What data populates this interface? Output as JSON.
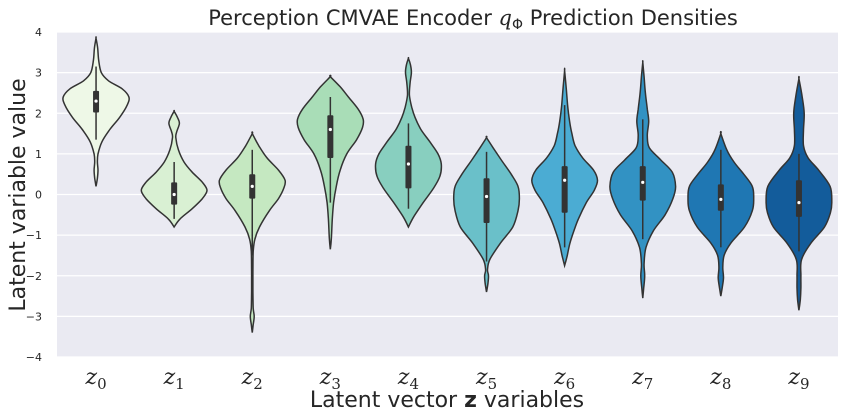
{
  "chart_data": {
    "type": "violin",
    "title_text": "Perception CMVAE Encoder ",
    "title_math": "q",
    "title_sub": "Φ",
    "title_tail": " Prediction Densities",
    "ylabel": "Latent variable value",
    "xlabel_pre": "Latent vector ",
    "xlabel_bold": "z",
    "xlabel_post": " variables",
    "ylim": [
      -4,
      4
    ],
    "yticks": [
      "−4",
      "−3",
      "−2",
      "−1",
      "0",
      "1",
      "2",
      "3",
      "4"
    ],
    "ytick_values": [
      -4,
      -3,
      -2,
      -1,
      0,
      1,
      2,
      3,
      4
    ],
    "grid": true,
    "background": "#eaeaf2",
    "categories": [
      {
        "base": "z",
        "sub": "0"
      },
      {
        "base": "z",
        "sub": "1"
      },
      {
        "base": "z",
        "sub": "2"
      },
      {
        "base": "z",
        "sub": "3"
      },
      {
        "base": "z",
        "sub": "4"
      },
      {
        "base": "z",
        "sub": "5"
      },
      {
        "base": "z",
        "sub": "6"
      },
      {
        "base": "z",
        "sub": "7"
      },
      {
        "base": "z",
        "sub": "8"
      },
      {
        "base": "z",
        "sub": "9"
      }
    ],
    "colors": [
      "#eef8e7",
      "#d9f0d3",
      "#c5e8c1",
      "#a9ddb7",
      "#88cfbf",
      "#6ac0c9",
      "#4bacd3",
      "#3292c3",
      "#1f77b3",
      "#135c9b"
    ],
    "violins": [
      {
        "q1": 2.02,
        "median": 2.3,
        "q3": 2.55,
        "wlo": 1.35,
        "whi": 3.15,
        "profile": [
          [
            0.2,
            0
          ],
          [
            0.4,
            0.04
          ],
          [
            0.6,
            0.06
          ],
          [
            0.8,
            0.04
          ],
          [
            1.0,
            0.06
          ],
          [
            1.3,
            0.18
          ],
          [
            1.6,
            0.42
          ],
          [
            1.9,
            0.72
          ],
          [
            2.2,
            0.95
          ],
          [
            2.4,
            1.0
          ],
          [
            2.6,
            0.8
          ],
          [
            2.8,
            0.38
          ],
          [
            3.0,
            0.16
          ],
          [
            3.3,
            0.08
          ],
          [
            3.6,
            0.05
          ],
          [
            3.85,
            0
          ]
        ]
      },
      {
        "q1": -0.25,
        "median": 0.0,
        "q3": 0.3,
        "wlo": -0.6,
        "whi": 0.8,
        "profile": [
          [
            -0.8,
            0
          ],
          [
            -0.6,
            0.18
          ],
          [
            -0.35,
            0.55
          ],
          [
            -0.1,
            0.86
          ],
          [
            0.1,
            1.0
          ],
          [
            0.3,
            0.86
          ],
          [
            0.55,
            0.55
          ],
          [
            0.8,
            0.3
          ],
          [
            1.1,
            0.13
          ],
          [
            1.4,
            0.05
          ],
          [
            1.55,
            0.08
          ],
          [
            1.75,
            0.16
          ],
          [
            1.9,
            0.1
          ],
          [
            2.05,
            0
          ]
        ]
      },
      {
        "q1": -0.1,
        "median": 0.2,
        "q3": 0.5,
        "wlo": -1.5,
        "whi": 1.1,
        "profile": [
          [
            -3.4,
            0
          ],
          [
            -3.2,
            0.03
          ],
          [
            -3.0,
            0.06
          ],
          [
            -2.8,
            0.03
          ],
          [
            -2.4,
            0.02
          ],
          [
            -1.9,
            0.02
          ],
          [
            -1.4,
            0.03
          ],
          [
            -1.1,
            0.08
          ],
          [
            -0.8,
            0.22
          ],
          [
            -0.4,
            0.52
          ],
          [
            -0.1,
            0.8
          ],
          [
            0.15,
            0.96
          ],
          [
            0.35,
            1.0
          ],
          [
            0.6,
            0.8
          ],
          [
            0.9,
            0.45
          ],
          [
            1.2,
            0.2
          ],
          [
            1.5,
            0
          ]
        ]
      },
      {
        "q1": 0.9,
        "median": 1.6,
        "q3": 1.95,
        "wlo": -0.2,
        "whi": 2.4,
        "profile": [
          [
            -1.35,
            0
          ],
          [
            -1.1,
            0.03
          ],
          [
            -0.6,
            0.06
          ],
          [
            -0.2,
            0.1
          ],
          [
            0.2,
            0.18
          ],
          [
            0.6,
            0.3
          ],
          [
            1.0,
            0.5
          ],
          [
            1.35,
            0.8
          ],
          [
            1.65,
            0.98
          ],
          [
            1.85,
            1.0
          ],
          [
            2.1,
            0.85
          ],
          [
            2.4,
            0.55
          ],
          [
            2.65,
            0.3
          ],
          [
            2.9,
            0
          ]
        ]
      },
      {
        "q1": 0.15,
        "median": 0.75,
        "q3": 1.2,
        "wlo": -0.35,
        "whi": 1.75,
        "profile": [
          [
            -0.8,
            0
          ],
          [
            -0.55,
            0.16
          ],
          [
            -0.2,
            0.45
          ],
          [
            0.15,
            0.76
          ],
          [
            0.45,
            0.96
          ],
          [
            0.75,
            1.0
          ],
          [
            1.0,
            0.9
          ],
          [
            1.3,
            0.65
          ],
          [
            1.6,
            0.38
          ],
          [
            1.9,
            0.2
          ],
          [
            2.15,
            0.1
          ],
          [
            2.45,
            0.03
          ],
          [
            2.75,
            0.05
          ],
          [
            3.0,
            0.09
          ],
          [
            3.2,
            0.06
          ],
          [
            3.35,
            0
          ]
        ]
      },
      {
        "q1": -0.7,
        "median": -0.05,
        "q3": 0.4,
        "wlo": -1.65,
        "whi": 1.05,
        "profile": [
          [
            -2.4,
            0
          ],
          [
            -2.2,
            0.04
          ],
          [
            -2.0,
            0.06
          ],
          [
            -1.85,
            0.03
          ],
          [
            -1.6,
            0.1
          ],
          [
            -1.2,
            0.42
          ],
          [
            -0.8,
            0.8
          ],
          [
            -0.4,
            0.96
          ],
          [
            -0.1,
            1.0
          ],
          [
            0.2,
            0.96
          ],
          [
            0.5,
            0.75
          ],
          [
            0.85,
            0.45
          ],
          [
            1.15,
            0.2
          ],
          [
            1.4,
            0
          ]
        ]
      },
      {
        "q1": -0.45,
        "median": 0.35,
        "q3": 0.7,
        "wlo": -1.3,
        "whi": 2.2,
        "profile": [
          [
            -1.75,
            0
          ],
          [
            -1.5,
            0.08
          ],
          [
            -1.2,
            0.16
          ],
          [
            -0.9,
            0.28
          ],
          [
            -0.6,
            0.42
          ],
          [
            -0.2,
            0.66
          ],
          [
            0.1,
            0.9
          ],
          [
            0.35,
            1.0
          ],
          [
            0.6,
            0.88
          ],
          [
            0.9,
            0.55
          ],
          [
            1.2,
            0.32
          ],
          [
            1.5,
            0.22
          ],
          [
            1.8,
            0.15
          ],
          [
            2.2,
            0.09
          ],
          [
            2.6,
            0.05
          ],
          [
            3.05,
            0
          ]
        ]
      },
      {
        "q1": -0.15,
        "median": 0.3,
        "q3": 0.7,
        "wlo": -1.1,
        "whi": 1.85,
        "profile": [
          [
            -2.55,
            0
          ],
          [
            -2.3,
            0.03
          ],
          [
            -2.0,
            0.06
          ],
          [
            -1.7,
            0.04
          ],
          [
            -1.3,
            0.1
          ],
          [
            -0.9,
            0.32
          ],
          [
            -0.5,
            0.68
          ],
          [
            -0.1,
            0.92
          ],
          [
            0.2,
            1.0
          ],
          [
            0.55,
            0.9
          ],
          [
            0.85,
            0.55
          ],
          [
            1.15,
            0.2
          ],
          [
            1.45,
            0.14
          ],
          [
            1.8,
            0.18
          ],
          [
            2.1,
            0.14
          ],
          [
            2.5,
            0.08
          ],
          [
            2.9,
            0.04
          ],
          [
            3.25,
            0
          ]
        ]
      },
      {
        "q1": -0.4,
        "median": -0.12,
        "q3": 0.25,
        "wlo": -1.3,
        "whi": 1.1,
        "profile": [
          [
            -2.5,
            0
          ],
          [
            -2.3,
            0.04
          ],
          [
            -2.05,
            0.08
          ],
          [
            -1.8,
            0.06
          ],
          [
            -1.5,
            0.1
          ],
          [
            -1.2,
            0.3
          ],
          [
            -0.8,
            0.72
          ],
          [
            -0.4,
            0.96
          ],
          [
            -0.1,
            1.0
          ],
          [
            0.2,
            0.96
          ],
          [
            0.5,
            0.7
          ],
          [
            0.8,
            0.4
          ],
          [
            1.1,
            0.18
          ],
          [
            1.5,
            0
          ]
        ]
      },
      {
        "q1": -0.55,
        "median": -0.2,
        "q3": 0.35,
        "wlo": -1.4,
        "whi": 1.0,
        "profile": [
          [
            -2.85,
            0
          ],
          [
            -2.6,
            0.04
          ],
          [
            -2.3,
            0.06
          ],
          [
            -2.0,
            0.06
          ],
          [
            -1.6,
            0.08
          ],
          [
            -1.2,
            0.36
          ],
          [
            -0.8,
            0.78
          ],
          [
            -0.45,
            0.96
          ],
          [
            -0.2,
            1.0
          ],
          [
            0.2,
            0.95
          ],
          [
            0.6,
            0.6
          ],
          [
            0.9,
            0.28
          ],
          [
            1.2,
            0.14
          ],
          [
            1.6,
            0.14
          ],
          [
            2.0,
            0.16
          ],
          [
            2.4,
            0.1
          ],
          [
            2.85,
            0
          ]
        ]
      }
    ]
  }
}
